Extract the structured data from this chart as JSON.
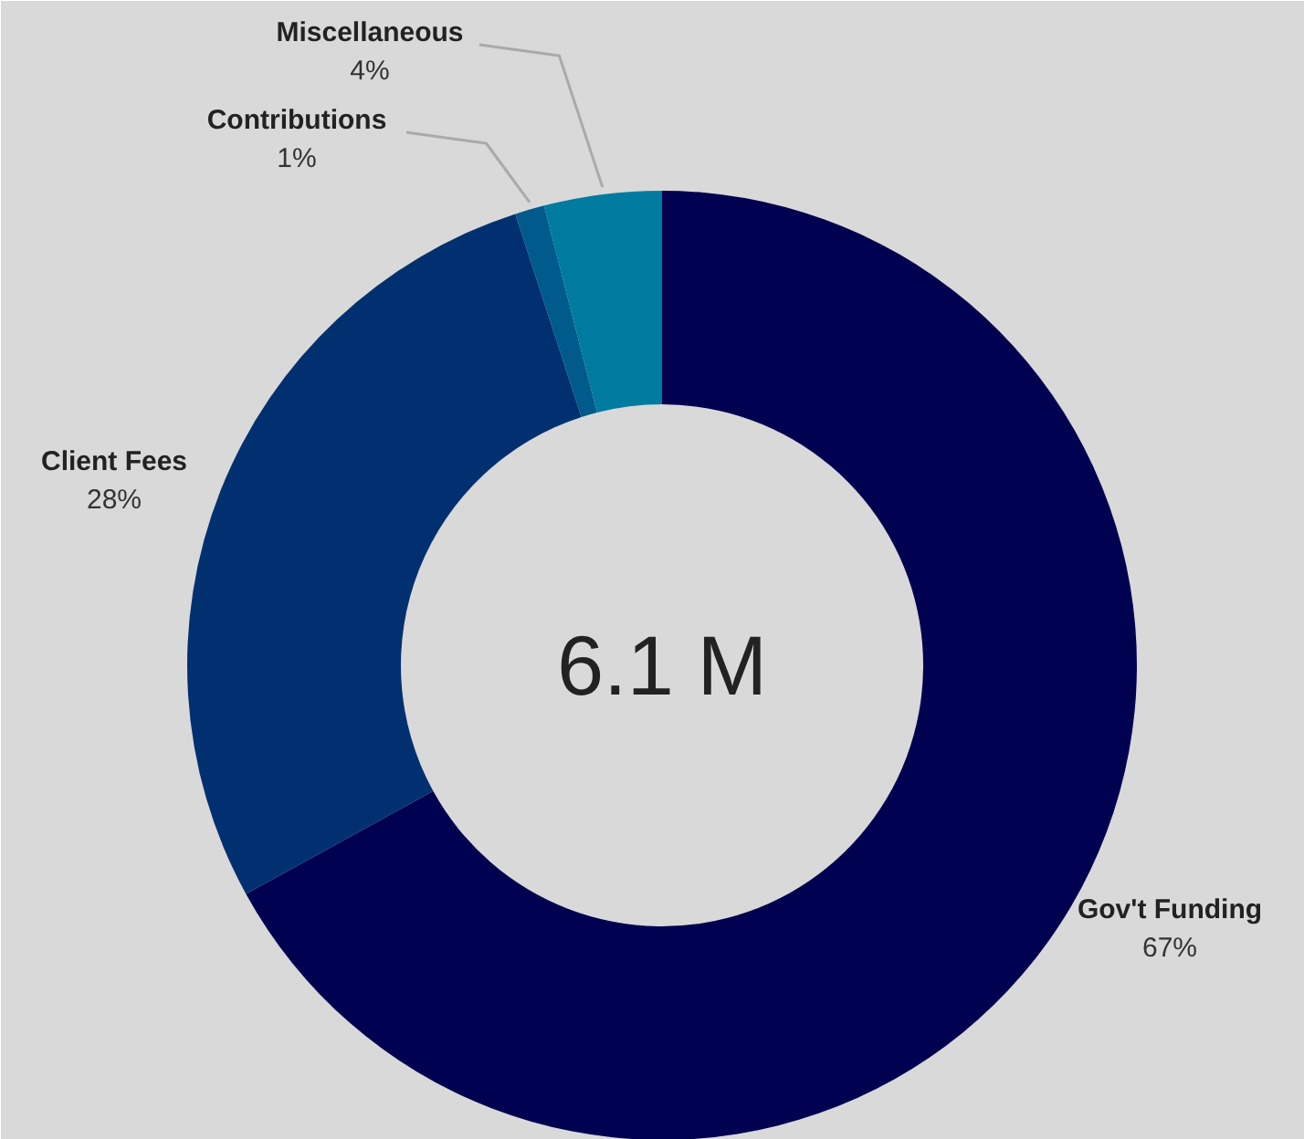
{
  "chart_data": {
    "type": "donut",
    "categories": [
      "Gov't Funding",
      "Client Fees",
      "Contributions",
      "Miscellaneous"
    ],
    "values": [
      67,
      28,
      1,
      4
    ],
    "colors": [
      "#000050",
      "#003070",
      "#005a8c",
      "#007ba0"
    ],
    "value_labels": [
      "67%",
      "28%",
      "1%",
      "4%"
    ],
    "annotations": [
      "6.1 M"
    ]
  }
}
